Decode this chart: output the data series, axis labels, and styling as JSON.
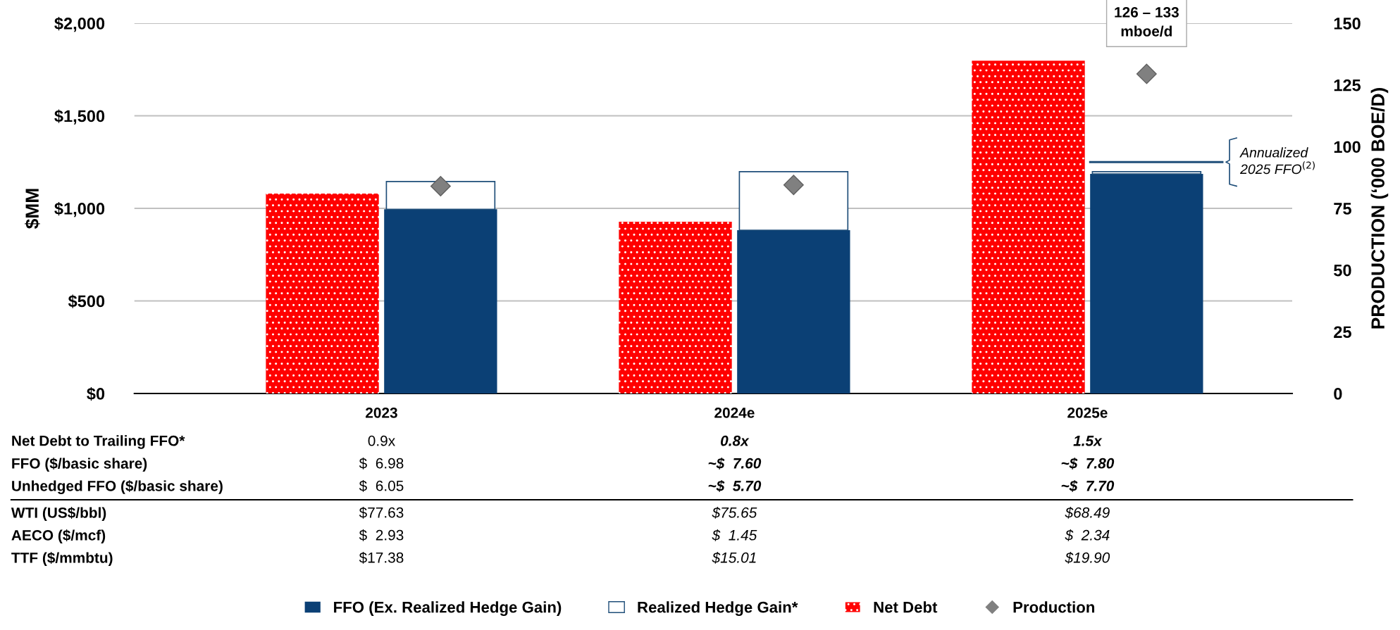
{
  "chart_data": {
    "type": "bar",
    "categories": [
      "2023",
      "2024e",
      "2025e"
    ],
    "series": [
      {
        "name": "Net Debt",
        "color": "#ff0000",
        "values": [
          1080,
          928,
          1798
        ]
      },
      {
        "name": "FFO (Ex. Realized Hedge Gain)",
        "color": "#0b4075",
        "values": [
          995,
          882,
          1186
        ]
      },
      {
        "name": "Realized Hedge Gain*",
        "color": "#ffffff",
        "values": [
          150,
          316,
          12
        ],
        "base": [
          995,
          882,
          1186
        ]
      },
      {
        "name": "Production",
        "type": "scatter",
        "axis": "y2",
        "color": "#808080",
        "values": [
          84,
          84.5,
          129.5
        ]
      }
    ],
    "ylabel": "$MM",
    "y2label": "PRODUCTION (‘000 BOE/D)",
    "ylim": [
      0,
      2000
    ],
    "yticks": [
      {
        "value": 0,
        "label": "$0"
      },
      {
        "value": 500,
        "label": "$500"
      },
      {
        "value": 1000,
        "label": "$1,000"
      },
      {
        "value": 1500,
        "label": "$1,500"
      },
      {
        "value": 2000,
        "label": "$2,000"
      }
    ],
    "y2lim": [
      0,
      150
    ],
    "y2ticks": [
      0,
      25,
      50,
      75,
      100,
      125,
      150
    ],
    "grid": "y",
    "legend": "bottom",
    "marker": "diamond",
    "ref_lines": [
      {
        "axis": "y",
        "value": 1250,
        "label": "Annualized\n2025 FFO$^{(2)}$",
        "color": "#1f4e79"
      }
    ],
    "annotations": [
      "126 – 133\nmboe/d",
      "Net Debt to Trailing FFO*",
      "0.9x",
      "0.8x",
      "1.5x",
      "FFO ($/basic share)",
      "$  6.98",
      "~$  7.60",
      "~$  7.80",
      "Unhedged FFO ($/basic share)",
      "$  6.05",
      "~$  5.70",
      "~$  7.70",
      "WTI (US$/bbl)",
      "$77.63",
      "$75.65",
      "$68.49",
      "AECO ($/mcf)",
      "$  2.93",
      "$  1.45",
      "$  2.34",
      "TTF ($/mmbtu)",
      "$17.38",
      "$15.01",
      "$19.90"
    ]
  }
}
